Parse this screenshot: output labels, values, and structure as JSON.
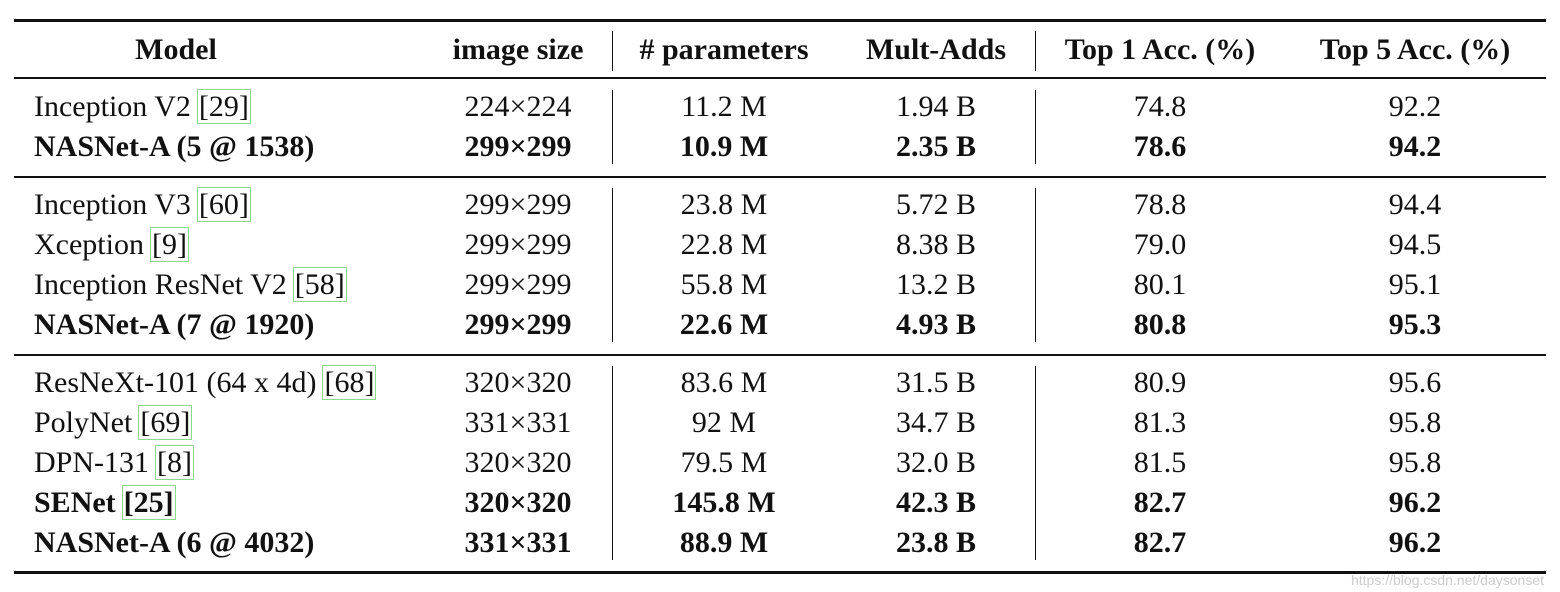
{
  "table": {
    "headers": [
      "Model",
      "image size",
      "# parameters",
      "Mult-Adds",
      "Top 1 Acc. (%)",
      "Top 5 Acc. (%)"
    ],
    "groups": [
      {
        "rows": [
          {
            "model": "Inception V2",
            "cite": "[29]",
            "bold": false,
            "cells": [
              "224×224",
              "11.2 M",
              "1.94 B",
              "74.8",
              "92.2"
            ]
          },
          {
            "model": "NASNet-A (5 @ 1538)",
            "bold": true,
            "cells": [
              "299×299",
              "10.9 M",
              "2.35 B",
              "78.6",
              "94.2"
            ]
          }
        ]
      },
      {
        "rows": [
          {
            "model": "Inception V3",
            "cite": "[60]",
            "bold": false,
            "cells": [
              "299×299",
              "23.8 M",
              "5.72 B",
              "78.8",
              "94.4"
            ]
          },
          {
            "model": "Xception",
            "cite": "[9]",
            "bold": false,
            "cells": [
              "299×299",
              "22.8 M",
              "8.38 B",
              "79.0",
              "94.5"
            ]
          },
          {
            "model": "Inception ResNet V2",
            "cite": "[58]",
            "bold": false,
            "cells": [
              "299×299",
              "55.8 M",
              "13.2 B",
              "80.1",
              "95.1"
            ]
          },
          {
            "model": "NASNet-A (7 @ 1920)",
            "bold": true,
            "cells": [
              "299×299",
              "22.6 M",
              "4.93 B",
              "80.8",
              "95.3"
            ]
          }
        ]
      },
      {
        "rows": [
          {
            "model": "ResNeXt-101 (64 x 4d)",
            "cite": "[68]",
            "bold": false,
            "cells": [
              "320×320",
              "83.6 M",
              "31.5 B",
              "80.9",
              "95.6"
            ]
          },
          {
            "model": "PolyNet",
            "cite": "[69]",
            "bold": false,
            "cells": [
              "331×331",
              "92 M",
              "34.7 B",
              "81.3",
              "95.8"
            ]
          },
          {
            "model": "DPN-131",
            "cite": "[8]",
            "bold": false,
            "cells": [
              "320×320",
              "79.5 M",
              "32.0 B",
              "81.5",
              "95.8"
            ]
          },
          {
            "model": "SENet",
            "cite": "[25]",
            "bold": true,
            "cells": [
              "320×320",
              "145.8 M",
              "42.3 B",
              "82.7",
              "96.2"
            ]
          },
          {
            "model": "NASNet-A (6 @ 4032)",
            "bold": true,
            "cells": [
              "331×331",
              "88.9 M",
              "23.8 B",
              "82.7",
              "96.2"
            ]
          }
        ]
      }
    ]
  },
  "watermark": "https://blog.csdn.net/daysonset"
}
